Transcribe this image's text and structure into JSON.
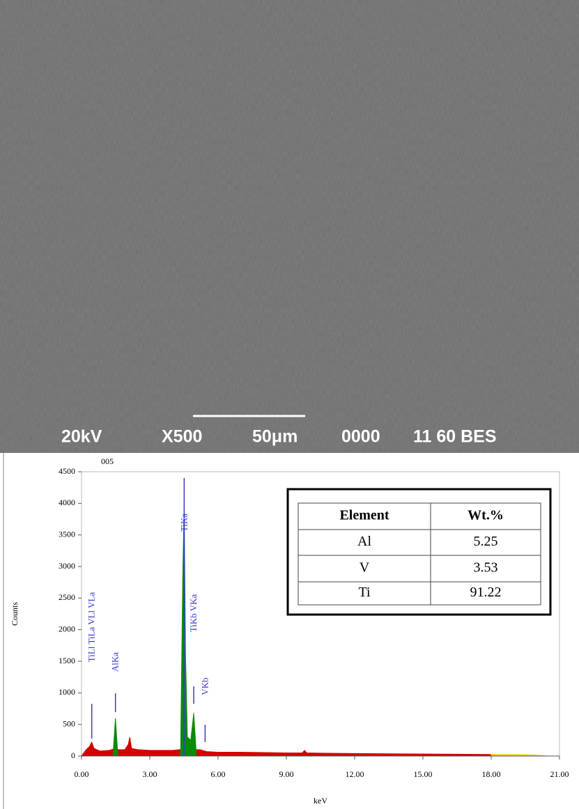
{
  "sem_image": {
    "labels": [
      "20kV",
      "X500",
      "50μm",
      "0000",
      "11 60 BES"
    ]
  },
  "chart_data": {
    "type": "area",
    "label": "005",
    "y_label": "Counts",
    "x_label": "keV",
    "xlim": [
      0,
      21
    ],
    "ylim": [
      0,
      4500
    ],
    "xticks": [
      {
        "value": 0,
        "label": "0.00"
      },
      {
        "value": 3,
        "label": "3.00"
      },
      {
        "value": 6,
        "label": "6.00"
      },
      {
        "value": 9,
        "label": "9.00"
      },
      {
        "value": 12,
        "label": "12.00"
      },
      {
        "value": 15,
        "label": "15.00"
      },
      {
        "value": 18,
        "label": "18.00"
      },
      {
        "value": 21,
        "label": "21.00"
      }
    ],
    "yticks": [
      0,
      500,
      1000,
      1500,
      2000,
      2500,
      3000,
      3500,
      4000,
      4500
    ],
    "series": [
      {
        "color": "#d40000",
        "x": [
          0,
          0.2,
          0.35,
          0.45,
          0.55,
          0.8,
          1.2,
          1.4,
          1.49,
          1.6,
          1.9,
          2.05,
          2.12,
          2.2,
          2.5,
          3,
          3.5,
          4,
          4.3,
          5.2,
          5.5,
          6,
          7,
          8,
          9,
          9.7,
          9.8,
          9.9,
          10.5,
          12,
          14,
          16,
          18
        ],
        "values": [
          0,
          100,
          150,
          220,
          120,
          80,
          90,
          110,
          150,
          100,
          100,
          180,
          300,
          120,
          100,
          90,
          90,
          90,
          100,
          100,
          70,
          60,
          60,
          55,
          50,
          50,
          90,
          50,
          45,
          40,
          35,
          30,
          25
        ]
      },
      {
        "color": "#e8cf00",
        "x": [
          18,
          19.5,
          20,
          20.5
        ],
        "values": [
          25,
          20,
          15,
          0
        ]
      },
      {
        "color": "#0a8a0a",
        "x": [
          1.38,
          1.49,
          1.6,
          1.61,
          4.35,
          4.45,
          4.51,
          4.57,
          4.65,
          4.8,
          4.93,
          5.05
        ],
        "values": [
          0,
          600,
          0,
          null,
          0,
          2900,
          3950,
          1600,
          300,
          250,
          680,
          0
        ]
      }
    ],
    "peaks": [
      {
        "label": "TiLl TiLa VLl VLa",
        "x": 0.45
      },
      {
        "label": "AlKa",
        "x": 1.49
      },
      {
        "label": "TiKa",
        "x": 4.51
      },
      {
        "label": "TiKb VKa",
        "x": 4.93
      },
      {
        "label": "VKb",
        "x": 5.43
      }
    ]
  },
  "table": {
    "header": [
      "Element",
      "Wt.%"
    ],
    "rows": [
      [
        "Al",
        "5.25"
      ],
      [
        "V",
        "3.53"
      ],
      [
        "Ti",
        "91.22"
      ]
    ]
  }
}
